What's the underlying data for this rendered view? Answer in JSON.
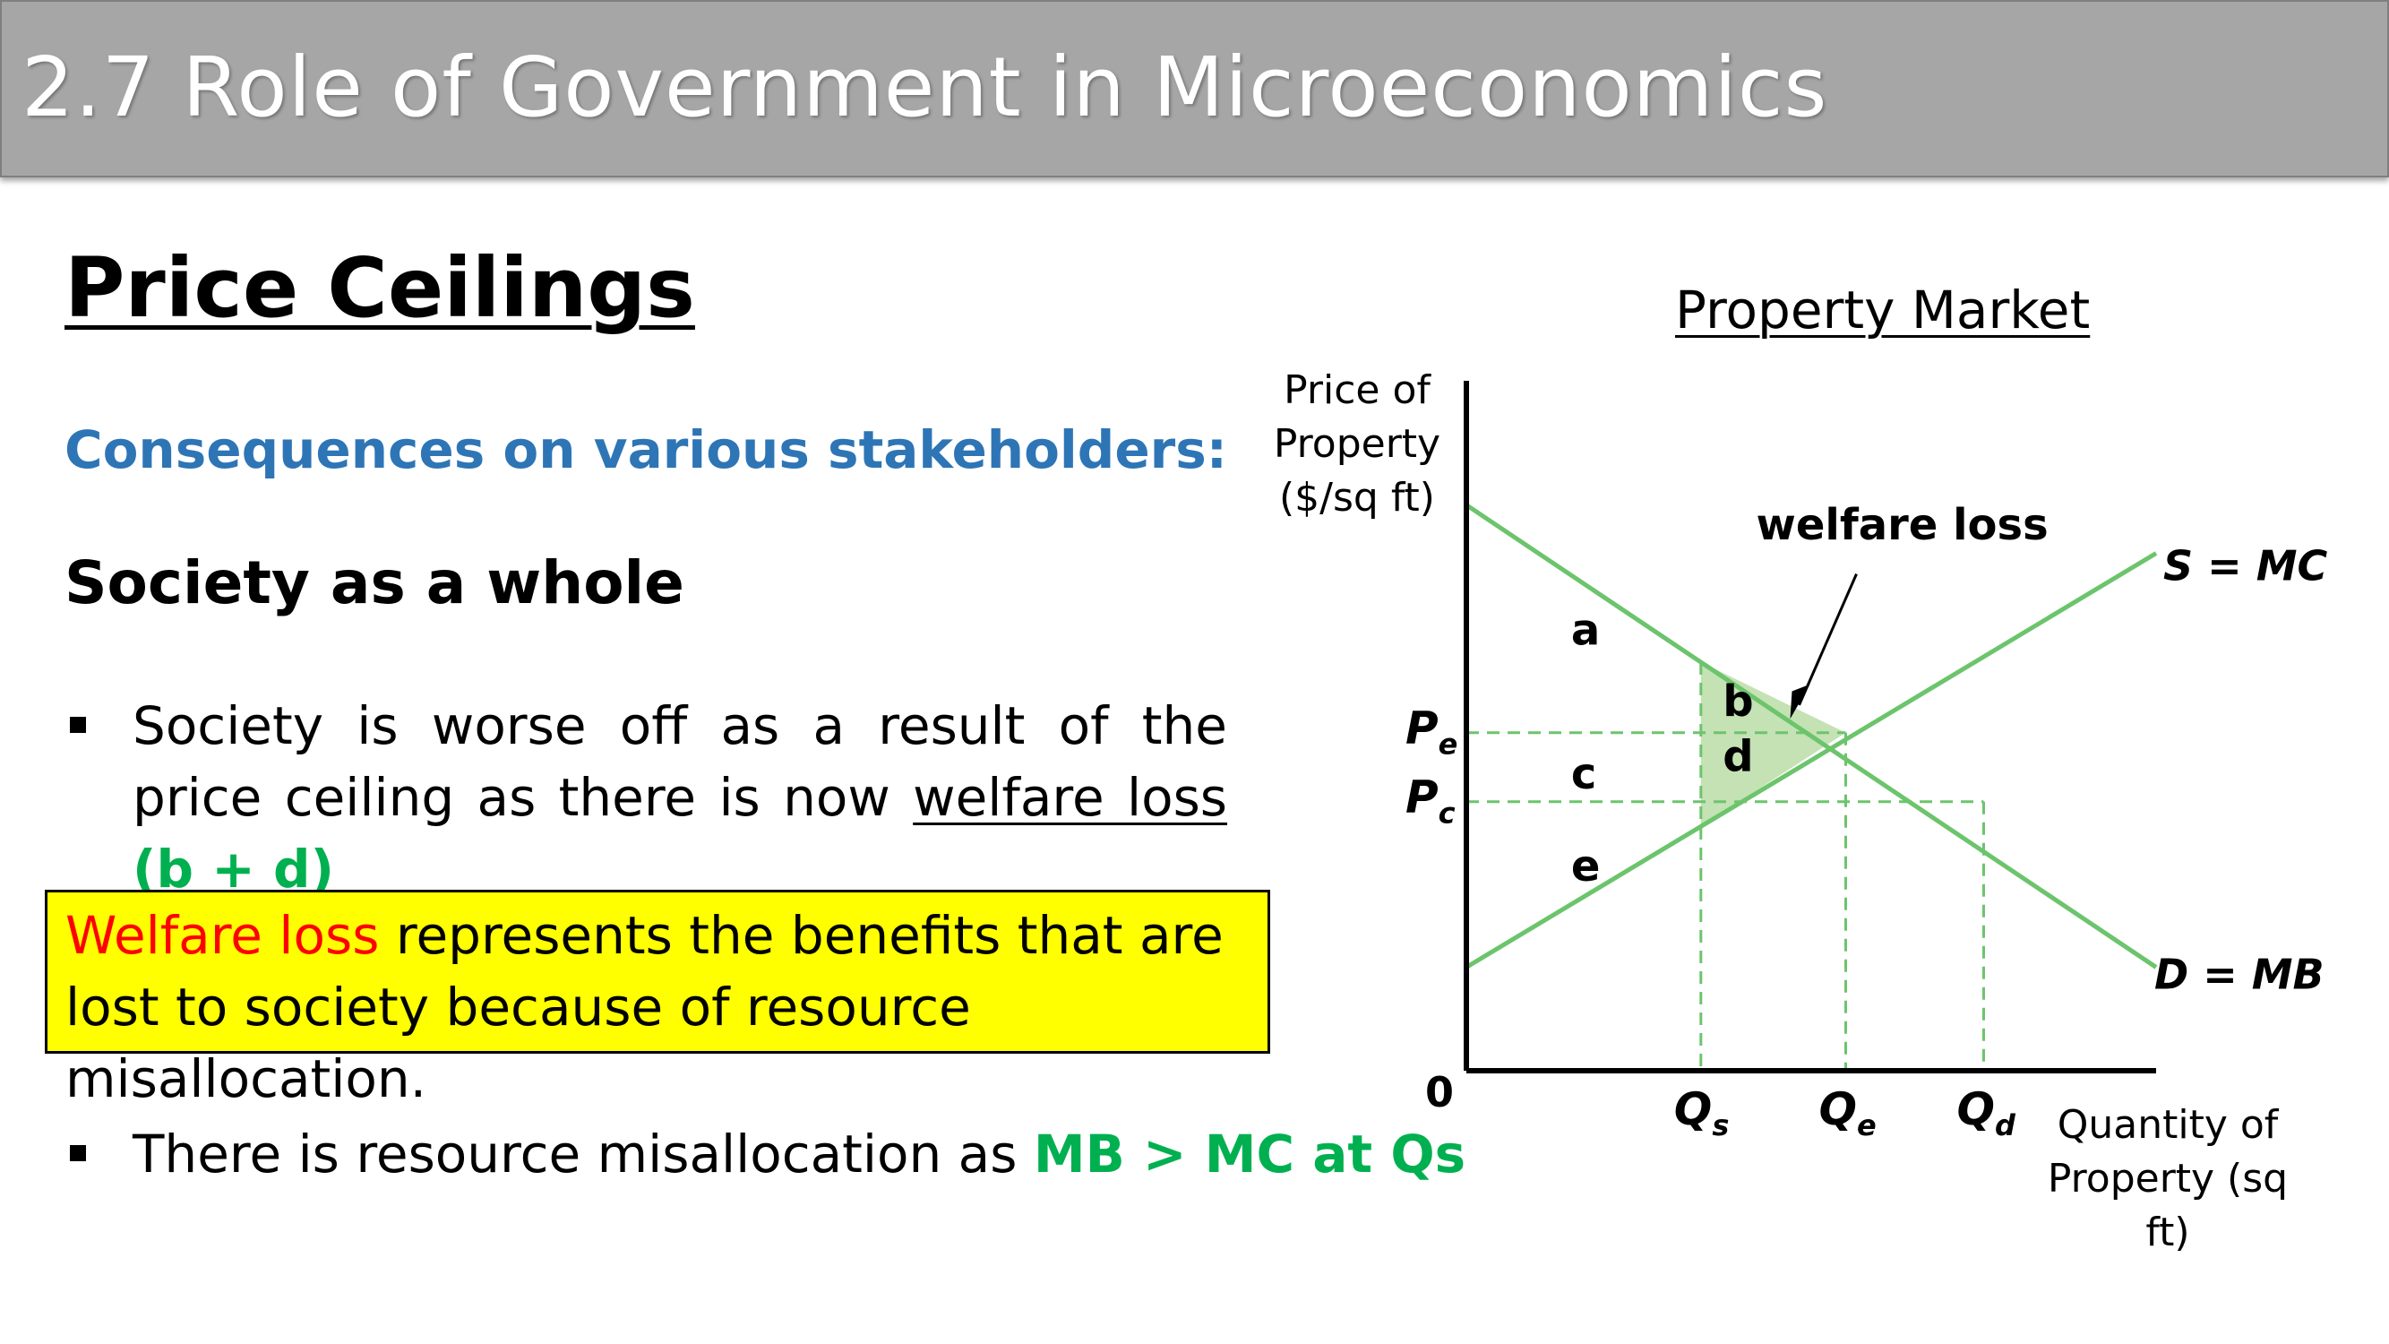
{
  "header": {
    "title": "2.7 Role of Government in Microeconomics"
  },
  "slide": {
    "section_title": "Price Ceilings",
    "subtitle": "Consequences on various stakeholders:",
    "group_heading": "Society as a whole",
    "bullet1": {
      "text": "Society is worse off as a result of the price ceiling as there is now ",
      "underlined": "welfare loss",
      "highlight": "(b + d)"
    },
    "callout": {
      "emphasis": "Welfare loss",
      "text": " represents the benefits that are lost to society because of resource misallocation."
    },
    "bullet2": {
      "text": "There is resource misallocation as ",
      "highlight": "MB > MC at Qs"
    }
  },
  "chart_data": {
    "type": "line",
    "title": "Property  Market",
    "ylabel": "Price of Property ($/sq ft)",
    "xlabel": "Quantity of Property (sq ft)",
    "origin_label": "0",
    "series": [
      {
        "name": "S = MC",
        "points": [
          [
            0,
            1.5
          ],
          [
            10,
            7.5
          ]
        ]
      },
      {
        "name": "D = MB",
        "points": [
          [
            0,
            8.2
          ],
          [
            10,
            1.5
          ]
        ]
      }
    ],
    "price_levels": [
      {
        "label": "P",
        "sub": "e",
        "value": 4.9
      },
      {
        "label": "P",
        "sub": "c",
        "value": 3.9
      }
    ],
    "quantity_levels": [
      {
        "label": "Q",
        "sub": "s",
        "value": 3.4
      },
      {
        "label": "Q",
        "sub": "e",
        "value": 5.5
      },
      {
        "label": "Q",
        "sub": "d",
        "value": 7.5
      }
    ],
    "areas": [
      "a",
      "b",
      "c",
      "d",
      "e"
    ],
    "annotation": "welfare loss",
    "colors": {
      "curves": "#6cc46c",
      "dashed": "#6cc46c",
      "shaded": "#c4e2b4",
      "axes": "#000000"
    },
    "xlim": [
      0,
      10
    ],
    "ylim": [
      0,
      10
    ]
  }
}
